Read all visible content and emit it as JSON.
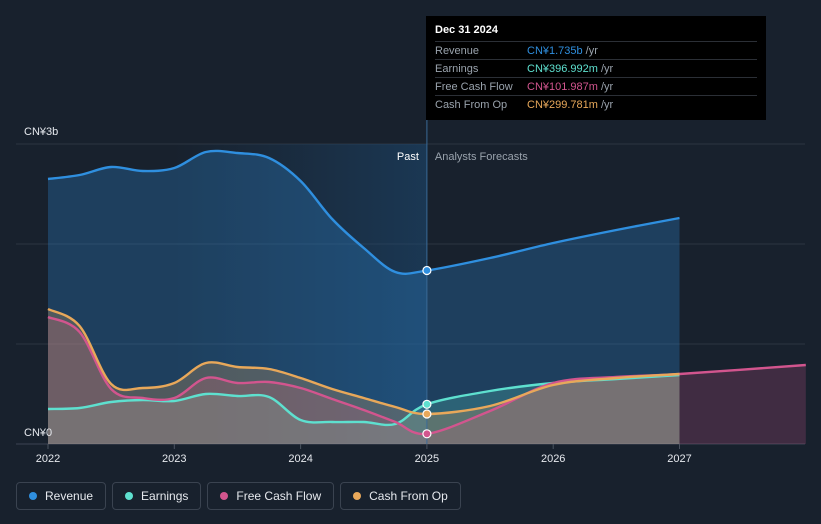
{
  "chart_data": {
    "type": "line",
    "currency_unit": "CN¥",
    "y_axis": {
      "top_label": "CN¥3b",
      "bottom_label": "CN¥0",
      "ylim": [
        0,
        3.0
      ]
    },
    "x_ticks": [
      "2022",
      "2023",
      "2024",
      "2025",
      "2026",
      "2027"
    ],
    "x_range": [
      2021.75,
      2028.0
    ],
    "region_labels": {
      "past": "Past",
      "forecast": "Analysts Forecasts"
    },
    "past_start": 2023.0,
    "past_end": 2025.0,
    "series": [
      {
        "name": "Revenue",
        "color": "#2f8fdf",
        "fill": true,
        "points": [
          [
            2022.0,
            2.65
          ],
          [
            2022.25,
            2.69
          ],
          [
            2022.5,
            2.77
          ],
          [
            2022.75,
            2.73
          ],
          [
            2023.0,
            2.76
          ],
          [
            2023.25,
            2.92
          ],
          [
            2023.5,
            2.91
          ],
          [
            2023.75,
            2.86
          ],
          [
            2024.0,
            2.63
          ],
          [
            2024.25,
            2.25
          ],
          [
            2024.5,
            1.96
          ],
          [
            2024.75,
            1.72
          ],
          [
            2025.0,
            1.735
          ],
          [
            2025.5,
            1.86
          ],
          [
            2026.0,
            2.01
          ],
          [
            2026.5,
            2.14
          ],
          [
            2027.0,
            2.26
          ]
        ]
      },
      {
        "name": "Earnings",
        "color": "#5ee0cf",
        "fill": true,
        "points": [
          [
            2022.0,
            0.35
          ],
          [
            2022.25,
            0.36
          ],
          [
            2022.5,
            0.42
          ],
          [
            2022.75,
            0.44
          ],
          [
            2023.0,
            0.43
          ],
          [
            2023.25,
            0.5
          ],
          [
            2023.5,
            0.48
          ],
          [
            2023.75,
            0.47
          ],
          [
            2024.0,
            0.24
          ],
          [
            2024.25,
            0.22
          ],
          [
            2024.5,
            0.22
          ],
          [
            2024.75,
            0.2
          ],
          [
            2025.0,
            0.397
          ],
          [
            2025.5,
            0.53
          ],
          [
            2026.0,
            0.61
          ],
          [
            2026.5,
            0.65
          ],
          [
            2027.0,
            0.69
          ]
        ]
      },
      {
        "name": "Free Cash Flow",
        "color": "#d2558e",
        "fill": true,
        "points": [
          [
            2022.0,
            1.27
          ],
          [
            2022.25,
            1.12
          ],
          [
            2022.5,
            0.55
          ],
          [
            2022.75,
            0.46
          ],
          [
            2023.0,
            0.46
          ],
          [
            2023.25,
            0.66
          ],
          [
            2023.5,
            0.61
          ],
          [
            2023.75,
            0.62
          ],
          [
            2024.0,
            0.56
          ],
          [
            2024.25,
            0.45
          ],
          [
            2024.5,
            0.34
          ],
          [
            2024.75,
            0.22
          ],
          [
            2025.0,
            0.102
          ],
          [
            2025.5,
            0.33
          ],
          [
            2026.0,
            0.61
          ],
          [
            2026.5,
            0.67
          ],
          [
            2027.0,
            0.7
          ],
          [
            2028.0,
            0.79
          ]
        ]
      },
      {
        "name": "Cash From Op",
        "color": "#e8a85a",
        "fill": true,
        "points": [
          [
            2022.0,
            1.35
          ],
          [
            2022.25,
            1.18
          ],
          [
            2022.5,
            0.6
          ],
          [
            2022.75,
            0.56
          ],
          [
            2023.0,
            0.61
          ],
          [
            2023.25,
            0.81
          ],
          [
            2023.5,
            0.77
          ],
          [
            2023.75,
            0.75
          ],
          [
            2024.0,
            0.66
          ],
          [
            2024.25,
            0.55
          ],
          [
            2024.5,
            0.46
          ],
          [
            2024.75,
            0.37
          ],
          [
            2025.0,
            0.3
          ],
          [
            2025.5,
            0.38
          ],
          [
            2026.0,
            0.59
          ],
          [
            2026.5,
            0.66
          ],
          [
            2027.0,
            0.7
          ]
        ]
      }
    ]
  },
  "tooltip": {
    "date": "Dec 31 2024",
    "unit": "/yr",
    "rows": [
      {
        "name": "Revenue",
        "value": "CN¥1.735b",
        "color": "#2f8fdf"
      },
      {
        "name": "Earnings",
        "value": "CN¥396.992m",
        "color": "#5ee0cf"
      },
      {
        "name": "Free Cash Flow",
        "value": "CN¥101.987m",
        "color": "#d2558e"
      },
      {
        "name": "Cash From Op",
        "value": "CN¥299.781m",
        "color": "#e8a85a"
      }
    ]
  },
  "legend": [
    {
      "label": "Revenue",
      "color": "#2f8fdf"
    },
    {
      "label": "Earnings",
      "color": "#5ee0cf"
    },
    {
      "label": "Free Cash Flow",
      "color": "#d2558e"
    },
    {
      "label": "Cash From Op",
      "color": "#e8a85a"
    }
  ]
}
